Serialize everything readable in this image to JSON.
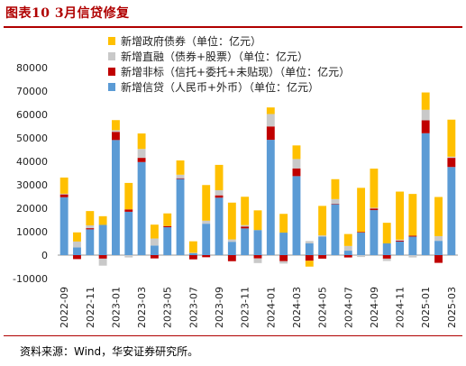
{
  "figure": {
    "title": "图表10  3月信贷修复",
    "source": "资料来源：Wind，华安证券研究所。"
  },
  "chart_data": {
    "type": "bar",
    "stacked": true,
    "ylim": [
      -10000,
      80000
    ],
    "yticks": [
      -10000,
      0,
      10000,
      20000,
      30000,
      40000,
      50000,
      60000,
      70000,
      80000
    ],
    "grid": false,
    "legend_position": "top-right",
    "x_labels": [
      "2022-09",
      "2022-11",
      "2023-01",
      "2023-03",
      "2023-05",
      "2023-07",
      "2023-09",
      "2023-11",
      "2024-01",
      "2024-03",
      "2024-05",
      "2024-07",
      "2024-09",
      "2024-11",
      "2025-01",
      "2025-03"
    ],
    "categories": [
      "2022-09",
      "2022-10",
      "2022-11",
      "2022-12",
      "2023-01",
      "2023-02",
      "2023-03",
      "2023-04",
      "2023-05",
      "2023-06",
      "2023-07",
      "2023-08",
      "2023-09",
      "2023-10",
      "2023-11",
      "2023-12",
      "2024-01",
      "2024-02",
      "2024-03",
      "2024-04",
      "2024-05",
      "2024-06",
      "2024-07",
      "2024-08",
      "2024-09",
      "2024-10",
      "2024-11",
      "2024-12",
      "2025-01",
      "2025-02",
      "2025-03"
    ],
    "series": [
      {
        "name": "新增信贷（人民币+外币）（单位：亿元）",
        "color": "#5b9bd5",
        "values": [
          24700,
          3300,
          11000,
          12900,
          49100,
          18500,
          39700,
          4100,
          11900,
          32500,
          900,
          13400,
          24500,
          5700,
          11400,
          10700,
          49200,
          9600,
          33700,
          5000,
          7900,
          21700,
          1900,
          9600,
          19200,
          5000,
          5800,
          7900,
          52000,
          6100,
          37600
        ]
      },
      {
        "name": "新增非标（信托+委托+未贴现）（单位：亿元）",
        "color": "#c00000",
        "values": [
          1200,
          -1700,
          500,
          -1500,
          3500,
          1000,
          1800,
          -1400,
          500,
          300,
          -1800,
          -900,
          1000,
          -2600,
          800,
          -1400,
          5700,
          -2600,
          3300,
          -2400,
          -1500,
          200,
          -1000,
          300,
          700,
          -1500,
          400,
          400,
          5500,
          -3300,
          3900
        ]
      },
      {
        "name": "新增直融（债券+股票）（单位：亿元）",
        "color": "#c9c9c9",
        "values": [
          300,
          2500,
          1200,
          -3000,
          700,
          -1000,
          3800,
          3000,
          -400,
          1500,
          100,
          1300,
          2200,
          1000,
          600,
          -2000,
          5300,
          -1000,
          4000,
          1000,
          500,
          2000,
          2000,
          -800,
          300,
          -1000,
          400,
          -1000,
          4500,
          2000,
          500
        ]
      },
      {
        "name": "新增政府债券（单位：亿元）",
        "color": "#ffc000",
        "values": [
          6900,
          3900,
          6100,
          3700,
          4300,
          11300,
          6600,
          5900,
          5400,
          6100,
          4900,
          15200,
          10800,
          15700,
          12100,
          8400,
          2800,
          8000,
          5800,
          -2500,
          12600,
          8500,
          5100,
          18800,
          16700,
          8800,
          20500,
          17800,
          7400,
          16700,
          15800
        ]
      }
    ],
    "legend_order": [
      3,
      2,
      1,
      0
    ]
  }
}
